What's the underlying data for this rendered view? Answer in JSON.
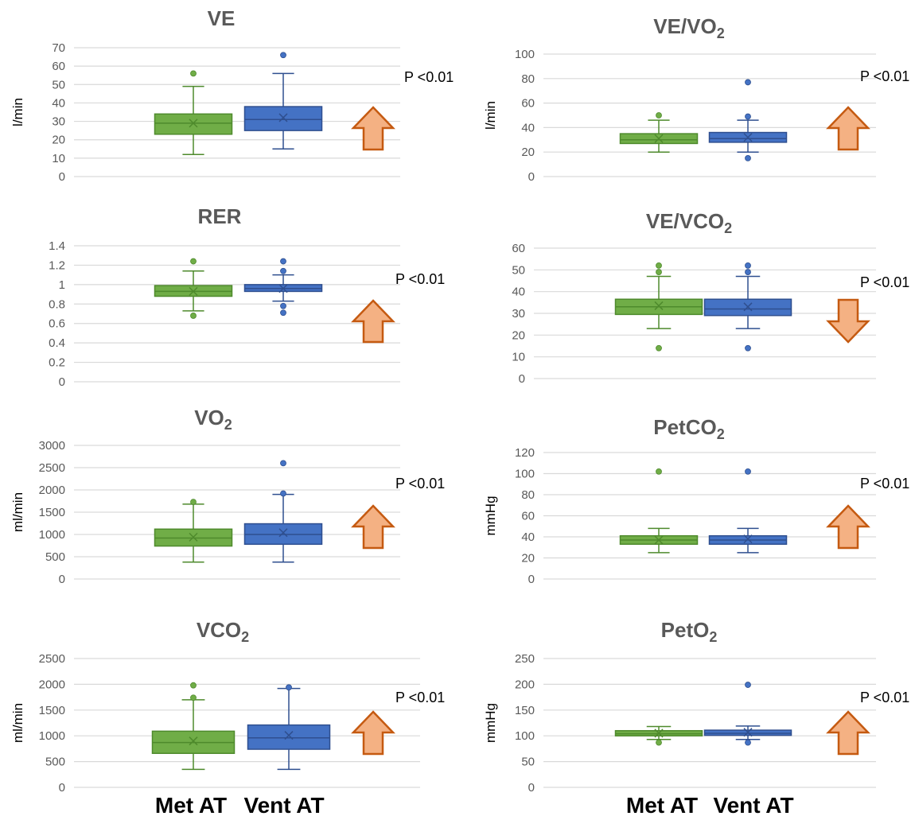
{
  "colors": {
    "met": "#70ad47",
    "met_stroke": "#4e8a2c",
    "vent": "#4472c4",
    "vent_stroke": "#2f4f8f",
    "arrow_fill": "#f4b183",
    "arrow_stroke": "#c55a11",
    "grid": "#d9d9d9",
    "text": "#595959"
  },
  "category_labels": [
    "Met AT",
    "Vent AT"
  ],
  "chart_data": [
    {
      "type": "box",
      "title": "VE",
      "title_sub": "",
      "ylabel": "l/min",
      "ylim": [
        0,
        70
      ],
      "yticks": [
        "0",
        "10",
        "20",
        "30",
        "40",
        "50",
        "60",
        "70"
      ],
      "p_value": "P <0.01",
      "trend": "up",
      "series": [
        {
          "name": "Met AT",
          "min": 12,
          "q1": 23,
          "median": 29,
          "q3": 34,
          "max": 49,
          "mean": 29,
          "outliers": [
            56
          ]
        },
        {
          "name": "Vent AT",
          "min": 15,
          "q1": 25,
          "median": 31,
          "q3": 38,
          "max": 56,
          "mean": 32,
          "outliers": [
            66
          ]
        }
      ]
    },
    {
      "type": "box",
      "title": "VE/VO",
      "title_sub": "2",
      "ylabel": "l/min",
      "ylim": [
        0,
        100
      ],
      "yticks": [
        "0",
        "20",
        "40",
        "60",
        "80",
        "100"
      ],
      "p_value": "P <0.01",
      "trend": "up",
      "series": [
        {
          "name": "Met AT",
          "min": 20,
          "q1": 27,
          "median": 30,
          "q3": 35,
          "max": 46,
          "mean": 31,
          "outliers": [
            50
          ]
        },
        {
          "name": "Vent AT",
          "min": 20,
          "q1": 28,
          "median": 31,
          "q3": 36,
          "max": 46,
          "mean": 32,
          "outliers": [
            49,
            77,
            15
          ]
        }
      ]
    },
    {
      "type": "box",
      "title": "RER",
      "title_sub": "",
      "ylabel": "",
      "ylim": [
        0,
        1.4
      ],
      "yticks": [
        "0",
        "0.2",
        "0.4",
        "0.6",
        "0.8",
        "1",
        "1.2",
        "1.4"
      ],
      "p_value": "P <0.01",
      "trend": "up",
      "series": [
        {
          "name": "Met AT",
          "min": 0.73,
          "q1": 0.88,
          "median": 0.93,
          "q3": 0.99,
          "max": 1.14,
          "mean": 0.93,
          "outliers": [
            1.24,
            0.68
          ]
        },
        {
          "name": "Vent AT",
          "min": 0.83,
          "q1": 0.93,
          "median": 0.96,
          "q3": 1.0,
          "max": 1.1,
          "mean": 0.96,
          "outliers": [
            1.24,
            1.14,
            0.78,
            0.71
          ]
        }
      ]
    },
    {
      "type": "box",
      "title": "VE/VCO",
      "title_sub": "2",
      "ylabel": "",
      "ylim": [
        0,
        60
      ],
      "yticks": [
        "0",
        "10",
        "20",
        "30",
        "40",
        "50",
        "60"
      ],
      "p_value": "P <0.01",
      "trend": "down",
      "series": [
        {
          "name": "Met AT",
          "min": 23,
          "q1": 29.5,
          "median": 33,
          "q3": 36.5,
          "max": 47,
          "mean": 33.5,
          "outliers": [
            52,
            49,
            14
          ]
        },
        {
          "name": "Vent AT",
          "min": 23,
          "q1": 29,
          "median": 32,
          "q3": 36.5,
          "max": 47,
          "mean": 33,
          "outliers": [
            52,
            49,
            14
          ]
        }
      ]
    },
    {
      "type": "box",
      "title": "VO",
      "title_sub": "2",
      "ylabel": "ml/min",
      "ylim": [
        0,
        3000
      ],
      "yticks": [
        "0",
        "500",
        "1000",
        "1500",
        "2000",
        "2500",
        "3000"
      ],
      "p_value": "P <0.01",
      "trend": "up",
      "series": [
        {
          "name": "Met AT",
          "min": 380,
          "q1": 740,
          "median": 920,
          "q3": 1120,
          "max": 1680,
          "mean": 940,
          "outliers": [
            1730
          ]
        },
        {
          "name": "Vent AT",
          "min": 380,
          "q1": 780,
          "median": 1000,
          "q3": 1240,
          "max": 1900,
          "mean": 1040,
          "outliers": [
            1920,
            2600
          ]
        }
      ]
    },
    {
      "type": "box",
      "title": "PetCO",
      "title_sub": "2",
      "ylabel": "mmHg",
      "ylim": [
        0,
        120
      ],
      "yticks": [
        "0",
        "20",
        "40",
        "60",
        "80",
        "100",
        "120"
      ],
      "p_value": "P <0.01",
      "trend": "up",
      "series": [
        {
          "name": "Met AT",
          "min": 25,
          "q1": 33,
          "median": 37,
          "q3": 41,
          "max": 48,
          "mean": 37,
          "outliers": [
            102
          ]
        },
        {
          "name": "Vent AT",
          "min": 25,
          "q1": 33,
          "median": 37,
          "q3": 41,
          "max": 48,
          "mean": 38,
          "outliers": [
            102
          ]
        }
      ]
    },
    {
      "type": "box",
      "title": "VCO",
      "title_sub": "2",
      "ylabel": "ml/min",
      "ylim": [
        0,
        2500
      ],
      "yticks": [
        "0",
        "500",
        "1000",
        "1500",
        "2000",
        "2500"
      ],
      "p_value": "P <0.01",
      "trend": "up",
      "series": [
        {
          "name": "Met AT",
          "min": 350,
          "q1": 660,
          "median": 870,
          "q3": 1090,
          "max": 1700,
          "mean": 900,
          "outliers": [
            1980,
            1740
          ]
        },
        {
          "name": "Vent AT",
          "min": 350,
          "q1": 740,
          "median": 960,
          "q3": 1210,
          "max": 1920,
          "mean": 1010,
          "outliers": [
            1940
          ]
        }
      ]
    },
    {
      "type": "box",
      "title": "PetO",
      "title_sub": "2",
      "ylabel": "mmHg",
      "ylim": [
        0,
        250
      ],
      "yticks": [
        "0",
        "50",
        "100",
        "150",
        "200",
        "250"
      ],
      "p_value": "P <0.01",
      "trend": "up",
      "series": [
        {
          "name": "Met AT",
          "min": 93,
          "q1": 100,
          "median": 104,
          "q3": 110,
          "max": 118,
          "mean": 105,
          "outliers": [
            87
          ]
        },
        {
          "name": "Vent AT",
          "min": 93,
          "q1": 101,
          "median": 105,
          "q3": 111,
          "max": 119,
          "mean": 107,
          "outliers": [
            87,
            199
          ]
        }
      ]
    }
  ]
}
